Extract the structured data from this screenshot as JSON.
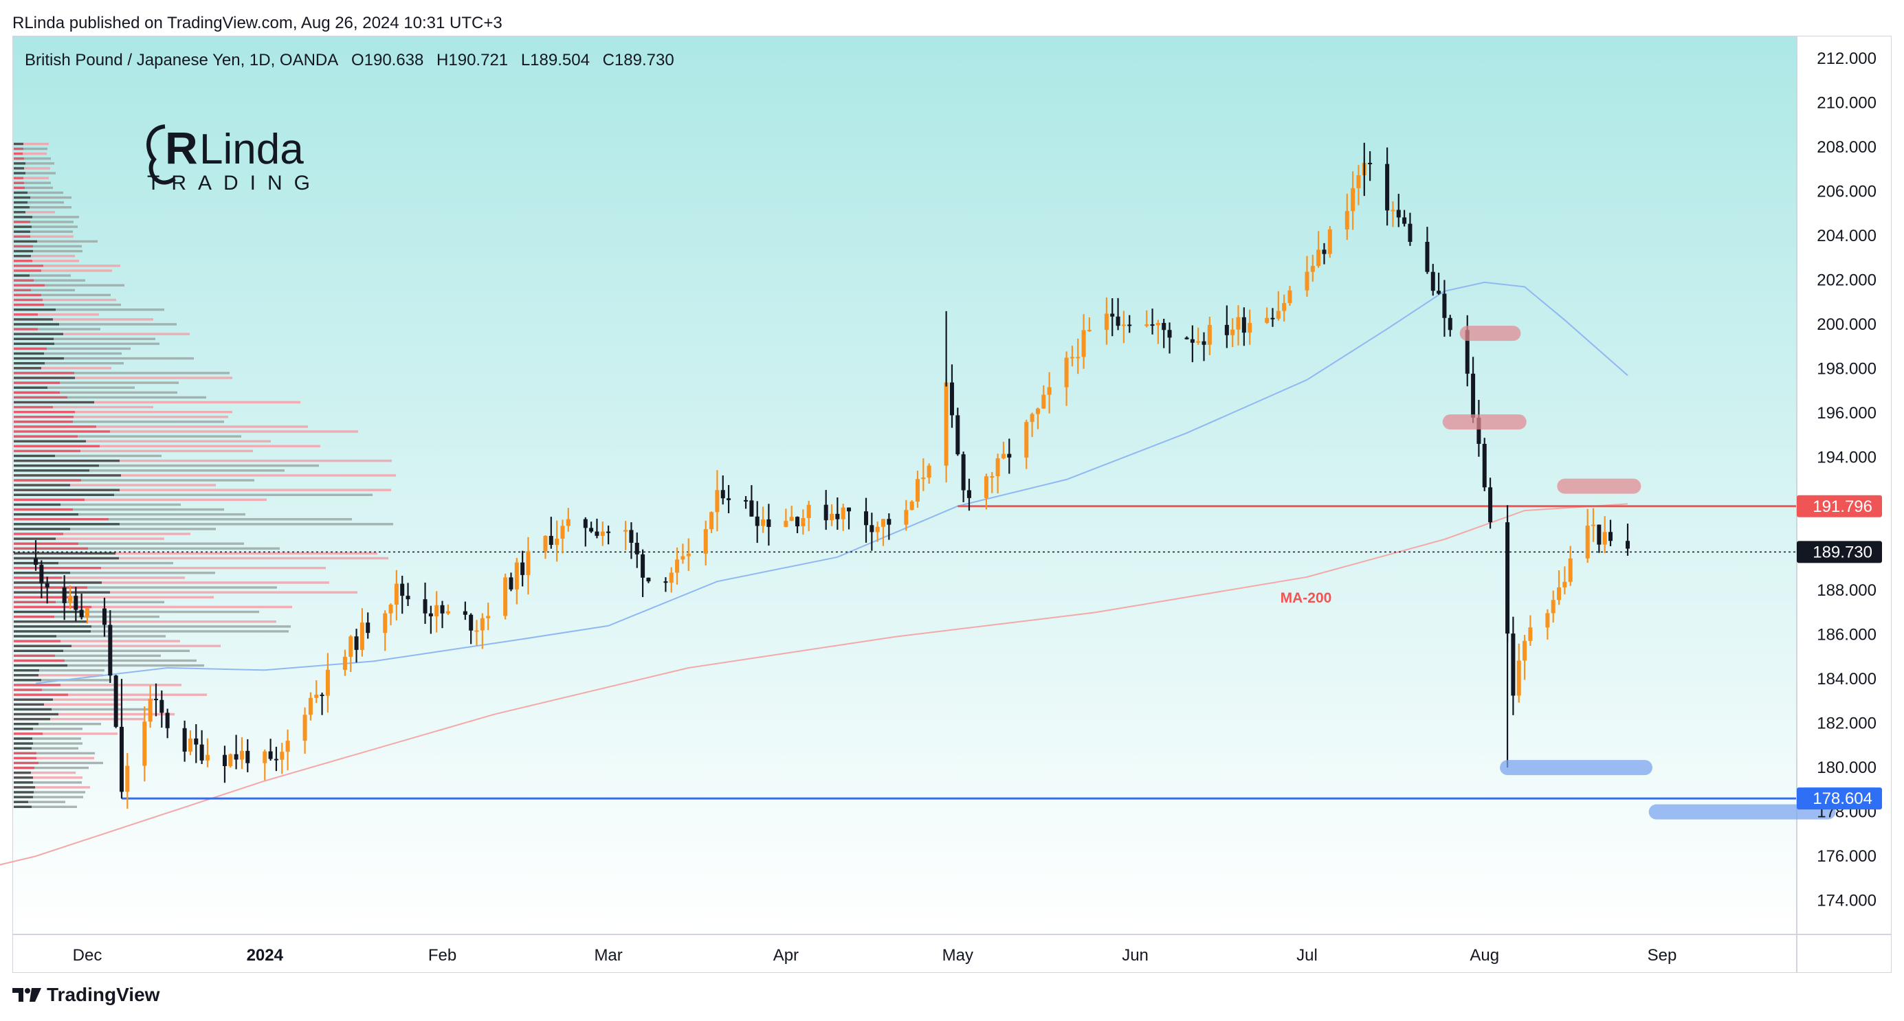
{
  "publisher": "RLinda published on TradingView.com, Aug 26, 2024 10:31 UTC+3",
  "symbol": {
    "name": "British Pound / Japanese Yen, 1D, OANDA",
    "open": "O190.638",
    "high": "H190.721",
    "low": "L189.504",
    "close": "C189.730"
  },
  "logo": {
    "line1": "RLinda",
    "line2": "TRADING"
  },
  "footer": {
    "brand": "TradingView",
    "icon": "tradingview-logo-icon"
  },
  "colors": {
    "up": "#f7931e",
    "down": "#131722",
    "resistance": "#f05555",
    "support": "#2f6ff5",
    "ma200": "#f4a8a8",
    "ma50": "#8fb8f2",
    "bg_top": "#ade8e6",
    "bg_bottom": "#ffffff"
  },
  "chart_data": {
    "type": "candlestick",
    "ylim": [
      172.5,
      213.0
    ],
    "y_ticks": [
      "212.000",
      "210.000",
      "208.000",
      "206.000",
      "204.000",
      "202.000",
      "200.000",
      "198.000",
      "196.000",
      "194.000",
      "188.000",
      "186.000",
      "184.000",
      "182.000",
      "180.000",
      "178.000",
      "176.000",
      "174.000"
    ],
    "x_ticks": [
      "Dec",
      "2024",
      "Feb",
      "Mar",
      "Apr",
      "May",
      "Jun",
      "Jul",
      "Aug",
      "Sep"
    ],
    "ma_label": "MA-200",
    "price_labels": [
      {
        "label": "191.796",
        "value": 191.796,
        "color": "#f05555"
      },
      {
        "label": "189.730",
        "value": 189.73,
        "color": "#131722"
      },
      {
        "label": "178.604",
        "value": 178.604,
        "color": "#2f6ff5"
      }
    ],
    "levels": [
      {
        "name": "resistance",
        "value": 191.796
      },
      {
        "name": "support",
        "value": 178.604
      },
      {
        "name": "last-price",
        "value": 189.73
      }
    ],
    "trend": [
      {
        "date": "2023-11-22",
        "value": 189.0
      },
      {
        "date": "2023-11-28",
        "value": 187.3
      },
      {
        "date": "2023-12-04",
        "value": 186.5
      },
      {
        "date": "2023-12-07",
        "value": 179.0
      },
      {
        "date": "2023-12-12",
        "value": 183.0
      },
      {
        "date": "2023-12-18",
        "value": 181.0
      },
      {
        "date": "2023-12-25",
        "value": 180.5
      },
      {
        "date": "2023-12-29",
        "value": 180.6
      },
      {
        "date": "2024-01-03",
        "value": 180.0
      },
      {
        "date": "2024-01-08",
        "value": 182.8
      },
      {
        "date": "2024-01-12",
        "value": 184.0
      },
      {
        "date": "2024-01-17",
        "value": 185.8
      },
      {
        "date": "2024-01-24",
        "value": 188.0
      },
      {
        "date": "2024-01-31",
        "value": 187.0
      },
      {
        "date": "2024-02-07",
        "value": 186.5
      },
      {
        "date": "2024-02-13",
        "value": 188.5
      },
      {
        "date": "2024-02-20",
        "value": 190.5
      },
      {
        "date": "2024-02-26",
        "value": 191.0
      },
      {
        "date": "2024-03-04",
        "value": 190.5
      },
      {
        "date": "2024-03-08",
        "value": 188.5
      },
      {
        "date": "2024-03-15",
        "value": 189.2
      },
      {
        "date": "2024-03-21",
        "value": 192.6
      },
      {
        "date": "2024-03-28",
        "value": 191.2
      },
      {
        "date": "2024-04-04",
        "value": 191.4
      },
      {
        "date": "2024-04-10",
        "value": 191.6
      },
      {
        "date": "2024-04-17",
        "value": 191.0
      },
      {
        "date": "2024-04-22",
        "value": 191.3
      },
      {
        "date": "2024-04-26",
        "value": 194.0
      },
      {
        "date": "2024-04-29",
        "value": 197.0
      },
      {
        "date": "2024-05-02",
        "value": 192.4
      },
      {
        "date": "2024-05-08",
        "value": 193.5
      },
      {
        "date": "2024-05-15",
        "value": 196.0
      },
      {
        "date": "2024-05-22",
        "value": 199.0
      },
      {
        "date": "2024-05-28",
        "value": 200.5
      },
      {
        "date": "2024-06-05",
        "value": 199.8
      },
      {
        "date": "2024-06-12",
        "value": 199.4
      },
      {
        "date": "2024-06-19",
        "value": 200.0
      },
      {
        "date": "2024-06-26",
        "value": 200.8
      },
      {
        "date": "2024-07-03",
        "value": 203.0
      },
      {
        "date": "2024-07-08",
        "value": 205.5
      },
      {
        "date": "2024-07-11",
        "value": 207.2
      },
      {
        "date": "2024-07-15",
        "value": 205.5
      },
      {
        "date": "2024-07-19",
        "value": 204.0
      },
      {
        "date": "2024-07-24",
        "value": 201.0
      },
      {
        "date": "2024-07-29",
        "value": 197.5
      },
      {
        "date": "2024-08-01",
        "value": 193.0
      },
      {
        "date": "2024-08-05",
        "value": 186.0
      },
      {
        "date": "2024-08-06",
        "value": 183.5
      },
      {
        "date": "2024-08-09",
        "value": 186.5
      },
      {
        "date": "2024-08-14",
        "value": 188.0
      },
      {
        "date": "2024-08-19",
        "value": 191.0
      },
      {
        "date": "2024-08-22",
        "value": 190.2
      },
      {
        "date": "2024-08-26",
        "value": 189.7
      }
    ],
    "ma50": [
      {
        "date": "2023-11-22",
        "value": 183.8
      },
      {
        "date": "2023-12-15",
        "value": 184.5
      },
      {
        "date": "2024-01-01",
        "value": 184.4
      },
      {
        "date": "2024-01-20",
        "value": 184.8
      },
      {
        "date": "2024-02-15",
        "value": 185.8
      },
      {
        "date": "2024-03-01",
        "value": 186.4
      },
      {
        "date": "2024-03-20",
        "value": 188.4
      },
      {
        "date": "2024-04-10",
        "value": 189.5
      },
      {
        "date": "2024-05-01",
        "value": 191.8
      },
      {
        "date": "2024-05-20",
        "value": 193.0
      },
      {
        "date": "2024-06-10",
        "value": 195.1
      },
      {
        "date": "2024-07-01",
        "value": 197.5
      },
      {
        "date": "2024-07-15",
        "value": 199.8
      },
      {
        "date": "2024-07-25",
        "value": 201.5
      },
      {
        "date": "2024-08-01",
        "value": 201.9
      },
      {
        "date": "2024-08-08",
        "value": 201.7
      },
      {
        "date": "2024-08-15",
        "value": 200.2
      },
      {
        "date": "2024-08-26",
        "value": 197.7
      }
    ],
    "ma200": [
      {
        "date": "2023-11-22",
        "value": 176.0
      },
      {
        "date": "2024-01-01",
        "value": 179.4
      },
      {
        "date": "2024-02-10",
        "value": 182.4
      },
      {
        "date": "2024-03-15",
        "value": 184.5
      },
      {
        "date": "2024-04-20",
        "value": 185.9
      },
      {
        "date": "2024-05-25",
        "value": 187.0
      },
      {
        "date": "2024-07-01",
        "value": 188.6
      },
      {
        "date": "2024-07-25",
        "value": 190.3
      },
      {
        "date": "2024-08-08",
        "value": 191.6
      },
      {
        "date": "2024-08-26",
        "value": 191.9
      }
    ],
    "zones": [
      {
        "color": "resistance",
        "date_from": "2024-07-29",
        "date_to": "2024-08-06",
        "value": 199.6
      },
      {
        "color": "resistance",
        "date_from": "2024-07-26",
        "date_to": "2024-08-07",
        "value": 195.6
      },
      {
        "color": "resistance",
        "date_from": "2024-08-15",
        "date_to": "2024-08-27",
        "value": 192.7
      },
      {
        "color": "support",
        "date_from": "2024-08-05",
        "date_to": "2024-08-29",
        "value": 180.0
      },
      {
        "color": "support",
        "date_from": "2024-08-31",
        "date_to": "2024-09-30",
        "value": 178.0
      }
    ]
  }
}
